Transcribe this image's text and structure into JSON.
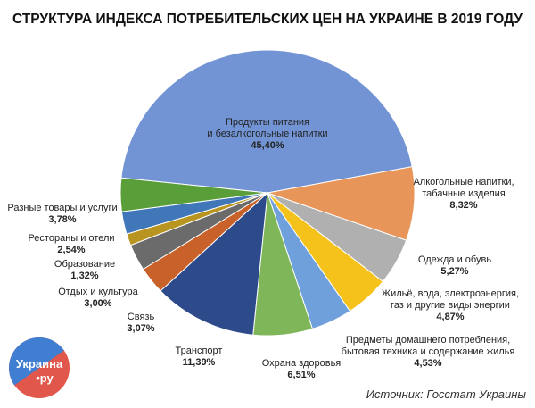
{
  "chart_data": {
    "type": "pie",
    "title": "СТРУКТУРА ИНДЕКСА ПОТРЕБИТЕЛЬСКИХ ЦЕН НА УКРАИНЕ В 2019 ГОДУ",
    "categories": [
      "Продукты питания\nи безалкогольные напитки",
      "Алкогольные напитки,\nтабачные изделия",
      "Одежда и обувь",
      "Жильё, вода, электроэнергия,\nгаз и другие виды энергии",
      "Предметы домашнего потребления,\nбытовая техника и содержание жилья",
      "Охрана здоровья",
      "Транспорт",
      "Связь",
      "Отдых и культура",
      "Образование",
      "Рестораны и отели",
      "Разные товары и услуги"
    ],
    "values": [
      45.4,
      8.32,
      5.27,
      4.87,
      4.53,
      6.51,
      11.39,
      3.07,
      3.0,
      1.32,
      2.54,
      3.78
    ],
    "value_labels": [
      "45,40%",
      "8,32%",
      "5,27%",
      "4,87%",
      "4,53%",
      "6,51%",
      "11,39%",
      "3,07%",
      "3,00%",
      "1,32%",
      "2,54%",
      "3,78%"
    ],
    "colors": [
      "#7294d4",
      "#e8955a",
      "#b0b0b0",
      "#f5c21b",
      "#6fa0dc",
      "#7fb65a",
      "#2d4a8a",
      "#c8622a",
      "#6b6b6b",
      "#b89520",
      "#3f77b8",
      "#5a9e3a"
    ],
    "source": "Источник: Госстат Украины"
  },
  "logo": {
    "line1": "Украина",
    "line2": "•ру"
  }
}
